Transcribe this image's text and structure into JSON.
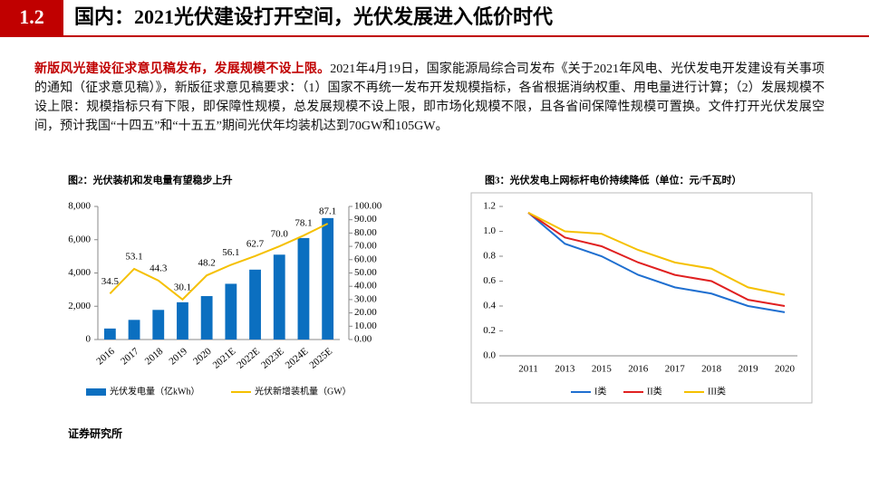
{
  "header": {
    "number": "1.2",
    "title": "国内：2021光伏建设打开空间，光伏发展进入低价时代"
  },
  "paragraph": {
    "lead": "新版风光建设征求意见稿发布，发展规模不设上限。",
    "body": "2021年4月19日，国家能源局综合司发布《关于2021年风电、光伏发电开发建设有关事项的通知（征求意见稿）》，新版征求意见稿要求：（1）国家不再统一发布开发规模指标，各省根据消纳权重、用电量进行计算；（2）发展规模不设上限：规模指标只有下限，即保障性规模，总发展规模不设上限，即市场化规模不限，且各省间保障性规模可置换。文件打开光伏发展空间，预计我国“十四五”和“十五五”期间光伏年均装机达到70GW和105GW。"
  },
  "footer": {
    "source": "证券研究所"
  },
  "chart_data": [
    {
      "type": "bar",
      "title": "图2：光伏装机和发电量有望稳步上升",
      "categories": [
        "2016",
        "2017",
        "2018",
        "2019",
        "2020",
        "2021E",
        "2022E",
        "2023E",
        "2024E",
        "2025E"
      ],
      "series": [
        {
          "name": "光伏发电量（亿kWh）",
          "color": "#0b6fc0",
          "values": [
            660,
            1180,
            1780,
            2240,
            2610,
            3350,
            4200,
            5100,
            6100,
            7300
          ]
        },
        {
          "name": "光伏新增装机量（GW）",
          "color": "#f5c000",
          "type": "line",
          "axis": "y2",
          "values": [
            34.5,
            53.1,
            44.3,
            30.1,
            48.2,
            56.1,
            62.7,
            70.0,
            78.1,
            87.1
          ],
          "value_labels": [
            "34.5",
            "53.1",
            "44.3",
            "30.1",
            "48.2",
            "56.1",
            "62.7",
            "70.0",
            "78.1",
            "87.1"
          ]
        }
      ],
      "ylim": [
        0,
        8000
      ],
      "yticks": [
        0,
        {
          "value": 2000,
          "label": "2,000"
        },
        {
          "value": 4000,
          "label": "4,000"
        },
        {
          "value": 6000,
          "label": "6,000"
        },
        {
          "value": 8000,
          "label": "8,000"
        }
      ],
      "y2lim": [
        0,
        100
      ],
      "y2ticks": [
        {
          "value": 0,
          "label": "0.00"
        },
        {
          "value": 10,
          "label": "10.00"
        },
        {
          "value": 20,
          "label": "20.00"
        },
        {
          "value": 30,
          "label": "30.00"
        },
        {
          "value": 40,
          "label": "40.00"
        },
        {
          "value": 50,
          "label": "50.00"
        },
        {
          "value": 60,
          "label": "60.00"
        },
        {
          "value": 70,
          "label": "70.00"
        },
        {
          "value": 80,
          "label": "80.00"
        },
        {
          "value": 90,
          "label": "90.00"
        },
        {
          "value": 100,
          "label": "100.00"
        }
      ],
      "grid": false,
      "legend": "bottom"
    },
    {
      "type": "line",
      "title": "图3：光伏发电上网标杆电价持续降低（单位：元/千瓦时）",
      "categories": [
        "2011",
        "2013",
        "2015",
        "2016",
        "2017",
        "2018",
        "2019",
        "2020"
      ],
      "series": [
        {
          "name": "I类",
          "color": "#1f6fd0",
          "values": [
            1.15,
            0.9,
            0.8,
            0.65,
            0.55,
            0.5,
            0.4,
            0.35
          ]
        },
        {
          "name": "II类",
          "color": "#e02020",
          "values": [
            1.15,
            0.95,
            0.88,
            0.75,
            0.65,
            0.6,
            0.45,
            0.4
          ]
        },
        {
          "name": "III类",
          "color": "#f5c000",
          "values": [
            1.15,
            1.0,
            0.98,
            0.85,
            0.75,
            0.7,
            0.55,
            0.49
          ]
        }
      ],
      "ylim": [
        0,
        1.2
      ],
      "yticks": [
        {
          "value": 0,
          "label": "0.0"
        },
        0.2,
        0.4,
        0.6,
        0.8,
        {
          "value": 1,
          "label": "1.0"
        },
        1.2
      ],
      "grid": false,
      "legend": "bottom"
    }
  ]
}
